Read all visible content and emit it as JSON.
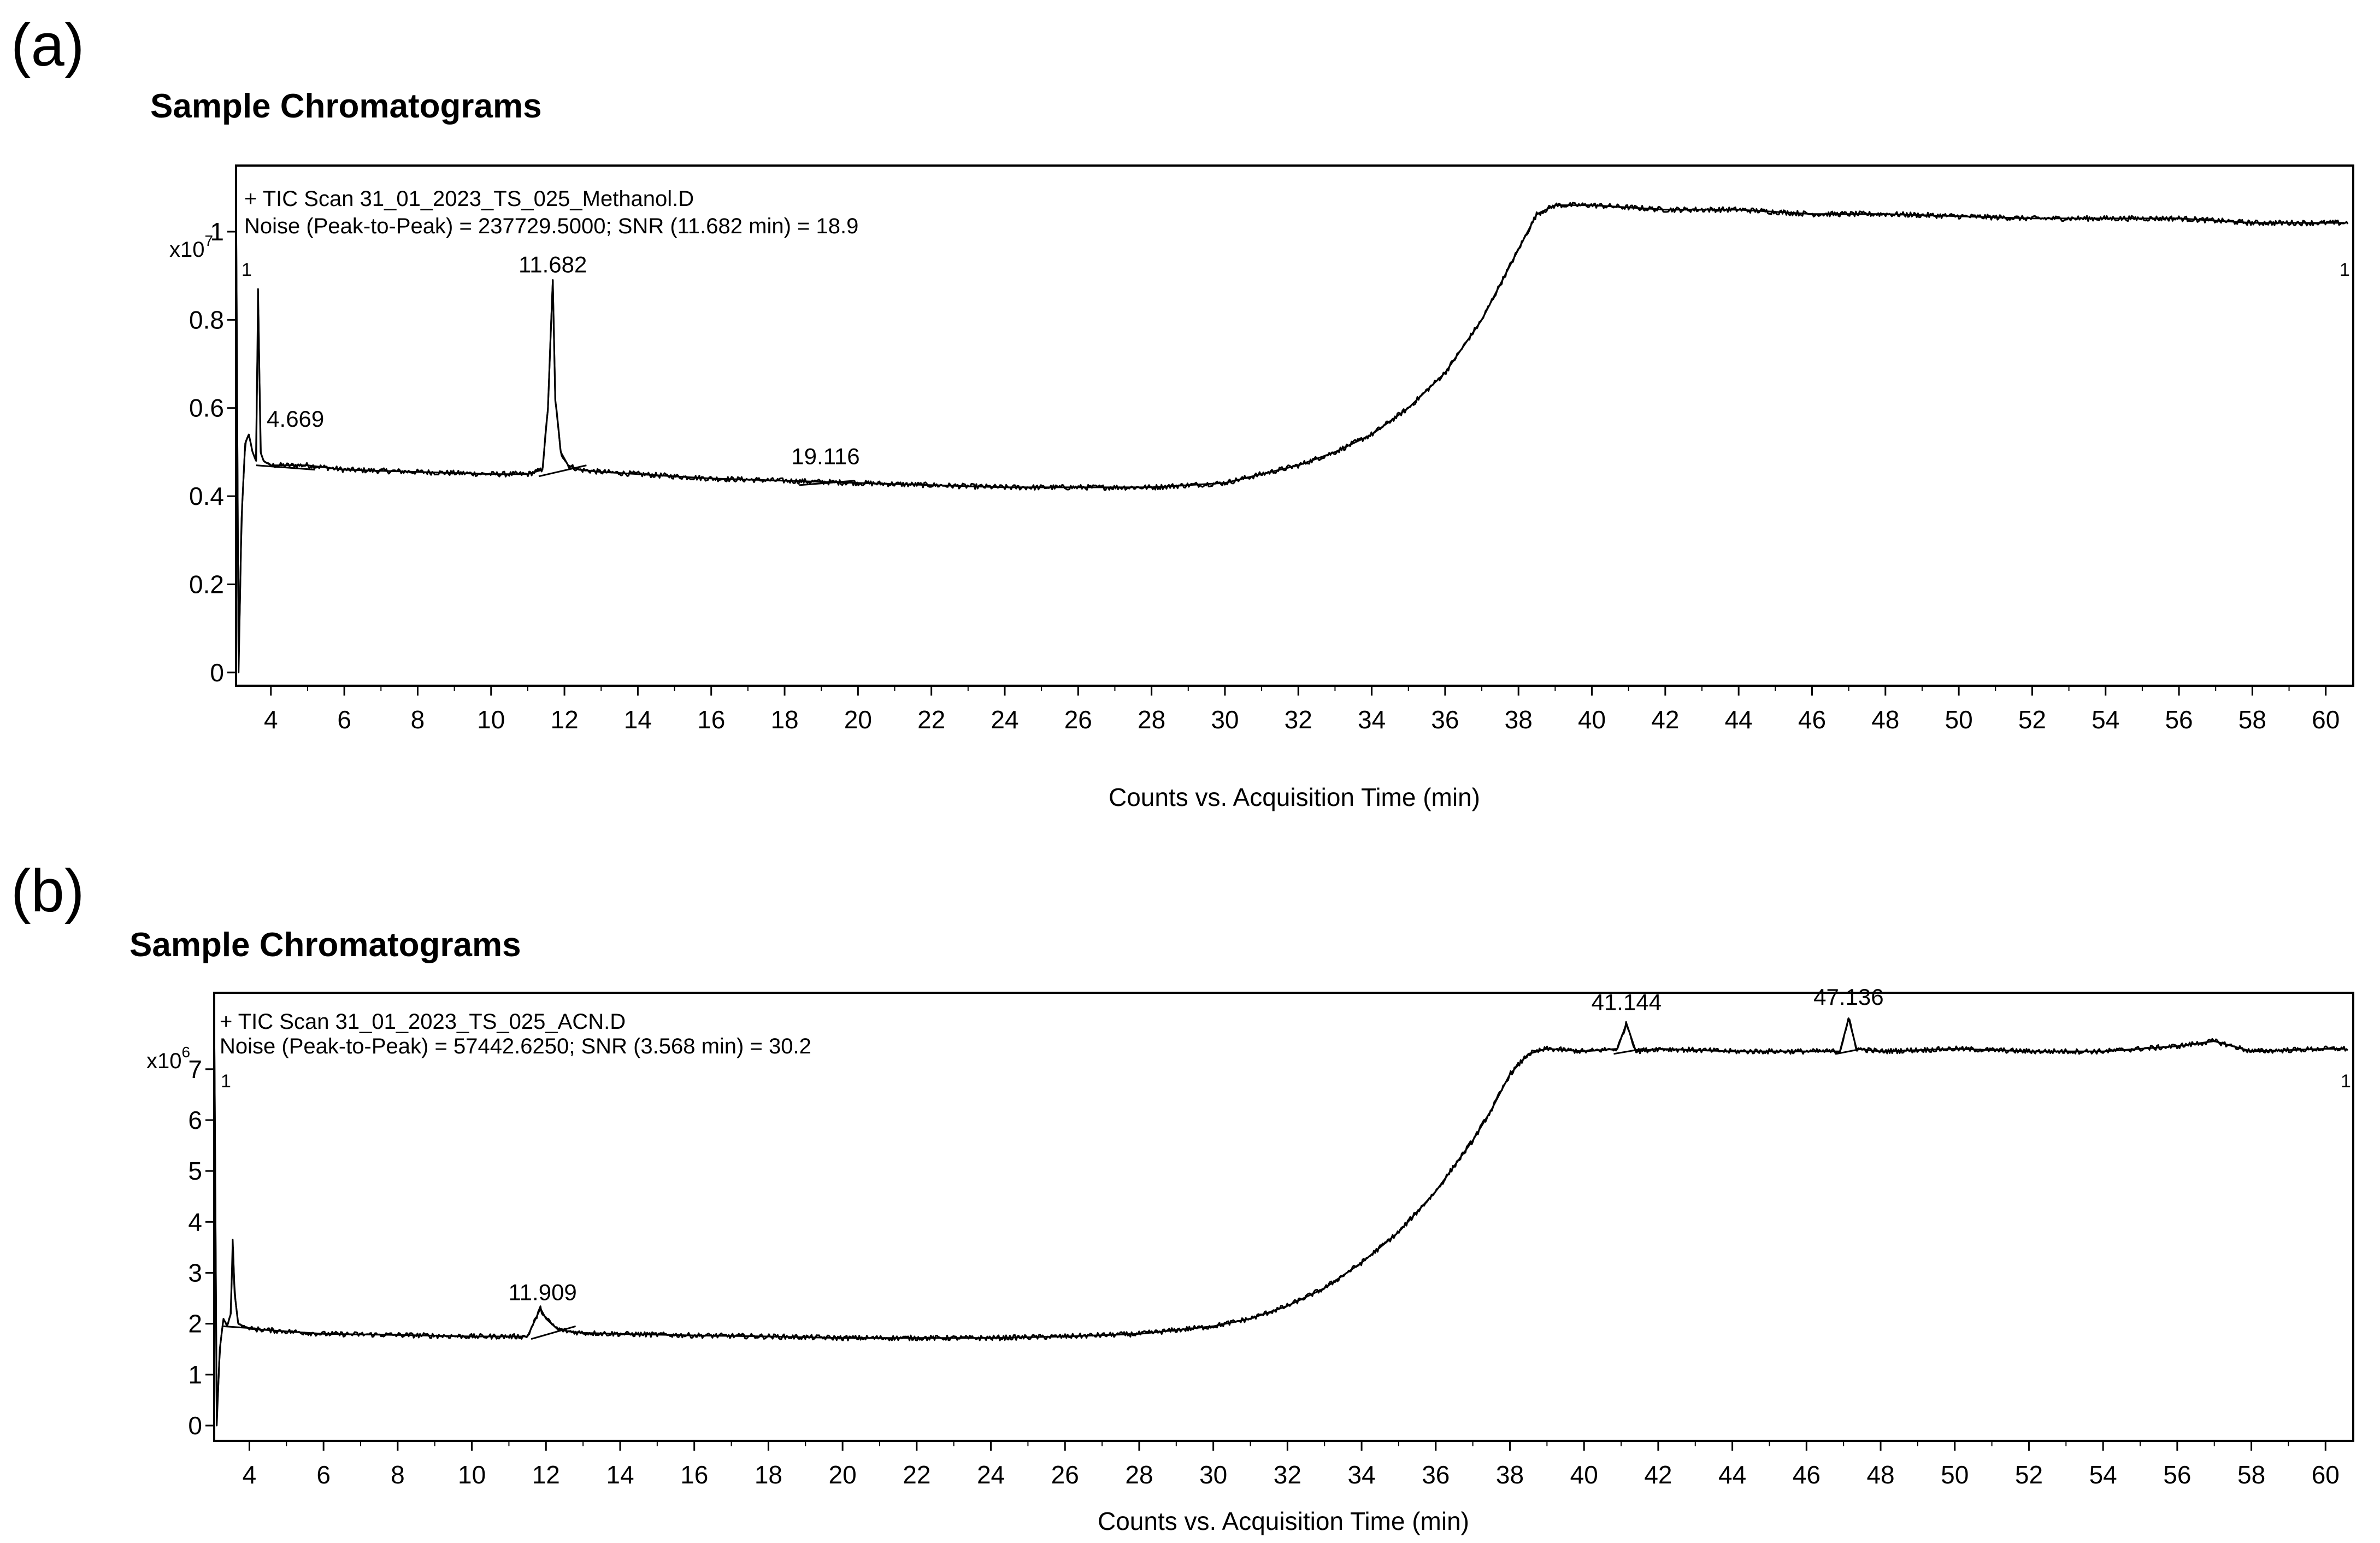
{
  "chart_data": [
    {
      "type": "line",
      "panel_label": "(a)",
      "section_title": "Sample Chromatograms",
      "series_name": "+ TIC Scan 31_01_2023_TS_025_Methanol.D",
      "noise_text": "Noise (Peak-to-Peak) = 237729.5000; SNR (11.682 min) = 18.9",
      "xlabel": "Counts vs. Acquisition Time (min)",
      "exponent_base": "x10",
      "exponent_power": "7",
      "marker_left": "1",
      "marker_right": "1",
      "xlim": [
        3.05,
        60.6
      ],
      "ylim": [
        -0.03,
        1.15
      ],
      "x_ticks": [
        4,
        6,
        8,
        10,
        12,
        14,
        16,
        18,
        20,
        22,
        24,
        26,
        28,
        30,
        32,
        34,
        36,
        38,
        40,
        42,
        44,
        46,
        48,
        50,
        52,
        54,
        56,
        58,
        60
      ],
      "y_ticks": [
        0,
        0.2,
        0.4,
        0.6,
        0.8,
        1
      ],
      "y_tick_labels": [
        "0",
        "0.2",
        "0.4",
        "0.6",
        "0.8",
        "1"
      ],
      "grid": false,
      "series": [
        {
          "x": [
            3.05,
            3.12,
            3.2,
            3.3,
            3.4,
            3.5,
            3.6,
            3.65,
            3.72,
            3.8,
            4.0,
            4.5,
            5.0,
            6,
            8,
            10,
            11.0,
            11.4,
            11.55,
            11.682,
            11.75,
            11.9,
            12.1,
            12.4,
            13,
            14,
            16,
            18,
            20,
            22,
            24,
            26,
            28,
            30,
            31,
            32,
            33,
            34,
            35,
            36,
            37,
            37.5,
            38,
            38.5,
            39,
            40,
            42,
            44,
            46,
            48,
            50,
            52,
            54,
            56,
            58,
            60,
            60.5
          ],
          "y": [
            1.1,
            0.0,
            0.35,
            0.52,
            0.54,
            0.5,
            0.48,
            0.87,
            0.5,
            0.48,
            0.47,
            0.47,
            0.47,
            0.46,
            0.455,
            0.45,
            0.45,
            0.46,
            0.6,
            0.89,
            0.62,
            0.5,
            0.47,
            0.46,
            0.455,
            0.45,
            0.44,
            0.435,
            0.43,
            0.425,
            0.42,
            0.42,
            0.42,
            0.43,
            0.45,
            0.47,
            0.5,
            0.54,
            0.6,
            0.68,
            0.8,
            0.88,
            0.96,
            1.04,
            1.06,
            1.06,
            1.05,
            1.05,
            1.04,
            1.04,
            1.035,
            1.03,
            1.03,
            1.03,
            1.02,
            1.02,
            1.02
          ],
          "noise": 0.006
        }
      ],
      "baselines": [
        {
          "x": [
            3.6,
            5.2
          ],
          "y": [
            0.47,
            0.46
          ]
        },
        {
          "x": [
            11.3,
            12.6
          ],
          "y": [
            0.445,
            0.47
          ]
        },
        {
          "x": [
            18.4,
            19.9
          ],
          "y": [
            0.425,
            0.435
          ]
        }
      ],
      "annotations": [
        {
          "text": "4.669",
          "x": 4.669,
          "y": 0.55
        },
        {
          "text": "11.682",
          "x": 11.682,
          "y": 0.9
        },
        {
          "text": "19.116",
          "x": 19.116,
          "y": 0.465
        }
      ]
    },
    {
      "type": "line",
      "panel_label": "(b)",
      "section_title": "Sample Chromatograms",
      "series_name": "+ TIC Scan 31_01_2023_TS_025_ACN.D",
      "noise_text": "Noise (Peak-to-Peak) = 57442.6250; SNR (3.568 min) = 30.2",
      "xlabel": "Counts vs. Acquisition Time (min)",
      "exponent_base": "x10",
      "exponent_power": "6",
      "marker_left": "1",
      "marker_right": "1",
      "xlim": [
        3.05,
        60.6
      ],
      "ylim": [
        -0.3,
        8.5
      ],
      "x_ticks": [
        4,
        6,
        8,
        10,
        12,
        14,
        16,
        18,
        20,
        22,
        24,
        26,
        28,
        30,
        32,
        34,
        36,
        38,
        40,
        42,
        44,
        46,
        48,
        50,
        52,
        54,
        56,
        58,
        60
      ],
      "y_ticks": [
        0,
        1,
        2,
        3,
        4,
        5,
        6,
        7
      ],
      "y_tick_labels": [
        "0",
        "1",
        "2",
        "3",
        "4",
        "5",
        "6",
        "7"
      ],
      "grid": false,
      "series": [
        {
          "x": [
            3.05,
            3.12,
            3.2,
            3.3,
            3.4,
            3.5,
            3.55,
            3.6,
            3.7,
            3.85,
            4.0,
            5,
            6,
            8,
            10,
            11.5,
            11.85,
            12.0,
            12.3,
            12.6,
            13,
            14,
            16,
            18,
            20,
            22,
            24,
            26,
            28,
            30,
            31,
            32,
            33,
            34,
            35,
            36,
            37,
            37.5,
            38,
            38.5,
            39,
            40,
            40.9,
            41.144,
            41.4,
            42,
            44,
            46,
            46.9,
            47.136,
            47.35,
            48,
            50,
            52,
            54,
            56,
            57,
            58,
            60,
            60.5
          ],
          "y": [
            8.3,
            0.0,
            1.5,
            2.1,
            1.95,
            2.2,
            3.65,
            2.6,
            2.0,
            1.95,
            1.9,
            1.85,
            1.8,
            1.78,
            1.75,
            1.75,
            2.3,
            2.1,
            1.9,
            1.85,
            1.82,
            1.8,
            1.77,
            1.75,
            1.72,
            1.72,
            1.72,
            1.75,
            1.8,
            1.95,
            2.1,
            2.35,
            2.7,
            3.2,
            3.8,
            4.6,
            5.6,
            6.2,
            6.9,
            7.3,
            7.4,
            7.35,
            7.4,
            7.9,
            7.35,
            7.4,
            7.35,
            7.35,
            7.35,
            8.0,
            7.4,
            7.35,
            7.4,
            7.35,
            7.35,
            7.45,
            7.55,
            7.35,
            7.4,
            7.4
          ],
          "noise": 0.05
        }
      ],
      "baselines": [
        {
          "x": [
            3.3,
            4.3
          ],
          "y": [
            1.95,
            1.9
          ]
        },
        {
          "x": [
            11.6,
            12.8
          ],
          "y": [
            1.7,
            1.95
          ]
        },
        {
          "x": [
            40.8,
            41.6
          ],
          "y": [
            7.3,
            7.4
          ]
        },
        {
          "x": [
            46.8,
            47.5
          ],
          "y": [
            7.3,
            7.4
          ]
        }
      ],
      "annotations": [
        {
          "text": "11.909",
          "x": 11.909,
          "y": 2.4
        },
        {
          "text": "41.144",
          "x": 41.144,
          "y": 8.1
        },
        {
          "text": "47.136",
          "x": 47.136,
          "y": 8.2
        }
      ]
    }
  ]
}
